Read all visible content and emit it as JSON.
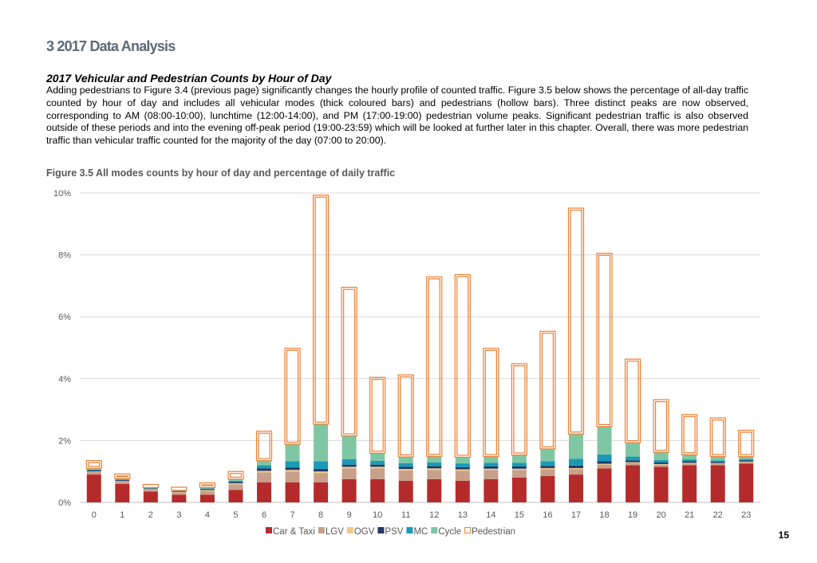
{
  "page": {
    "section_heading": "3 2017 Data Analysis",
    "sub_heading": "2017 Vehicular and Pedestrian Counts by Hour of Day",
    "paragraph": "Adding pedestrians to Figure 3.4 (previous page) significantly changes the hourly profile of counted traffic. Figure 3.5 below shows the percentage of all-day traffic counted by hour of day and includes all vehicular modes (thick coloured bars) and pedestrians (hollow bars). Three distinct peaks are now observed, corresponding to AM (08:00-10:00), lunchtime (12:00-14:00), and PM (17:00-19:00) pedestrian volume peaks. Significant pedestrian traffic is also observed outside of these periods and into the evening off-peak period (19:00-23:59) which will be looked at further later in this chapter. Overall, there was more pedestrian traffic than vehicular traffic counted for the majority of the day (07:00 to 20:00).",
    "figure_title": "Figure 3.5 All modes counts by hour of day and percentage of daily traffic",
    "page_number": "15"
  },
  "chart_data": {
    "type": "bar",
    "stacked": true,
    "categories": [
      "0",
      "1",
      "2",
      "3",
      "4",
      "5",
      "6",
      "7",
      "8",
      "9",
      "10",
      "11",
      "12",
      "13",
      "14",
      "15",
      "16",
      "17",
      "18",
      "19",
      "20",
      "21",
      "22",
      "23"
    ],
    "ylim": [
      0,
      10
    ],
    "yticks": [
      0,
      2,
      4,
      6,
      8,
      10
    ],
    "ytick_labels": [
      "0%",
      "2%",
      "4%",
      "6%",
      "8%",
      "10%"
    ],
    "grid": true,
    "legend_position": "bottom",
    "series": [
      {
        "name": "Car & Taxi",
        "color": "#b52b2b",
        "hollow": false,
        "values": [
          0.9,
          0.6,
          0.35,
          0.25,
          0.25,
          0.4,
          0.65,
          0.65,
          0.65,
          0.75,
          0.75,
          0.7,
          0.75,
          0.7,
          0.75,
          0.8,
          0.85,
          0.9,
          1.1,
          1.2,
          1.15,
          1.2,
          1.2,
          1.25
        ]
      },
      {
        "name": "LGV",
        "color": "#c8a08a",
        "hollow": false,
        "values": [
          0.08,
          0.07,
          0.06,
          0.07,
          0.12,
          0.18,
          0.32,
          0.35,
          0.3,
          0.35,
          0.35,
          0.33,
          0.3,
          0.32,
          0.3,
          0.25,
          0.22,
          0.18,
          0.12,
          0.08,
          0.07,
          0.06,
          0.05,
          0.05
        ]
      },
      {
        "name": "OGV",
        "color": "#f0c88a",
        "hollow": false,
        "values": [
          0.02,
          0.02,
          0.02,
          0.02,
          0.03,
          0.04,
          0.05,
          0.05,
          0.05,
          0.05,
          0.05,
          0.05,
          0.05,
          0.05,
          0.04,
          0.04,
          0.04,
          0.03,
          0.03,
          0.02,
          0.02,
          0.02,
          0.02,
          0.02
        ]
      },
      {
        "name": "PSV",
        "color": "#1f3864",
        "hollow": false,
        "values": [
          0.03,
          0.03,
          0.02,
          0.02,
          0.03,
          0.04,
          0.08,
          0.08,
          0.08,
          0.07,
          0.07,
          0.07,
          0.07,
          0.07,
          0.07,
          0.07,
          0.07,
          0.08,
          0.08,
          0.06,
          0.05,
          0.05,
          0.04,
          0.04
        ]
      },
      {
        "name": "MC",
        "color": "#1b99b5",
        "hollow": false,
        "values": [
          0.03,
          0.02,
          0.01,
          0.01,
          0.02,
          0.04,
          0.1,
          0.2,
          0.25,
          0.18,
          0.12,
          0.12,
          0.12,
          0.12,
          0.12,
          0.12,
          0.15,
          0.22,
          0.22,
          0.12,
          0.08,
          0.06,
          0.05,
          0.04
        ]
      },
      {
        "name": "Cycle",
        "color": "#7fc7a3",
        "hollow": false,
        "values": [
          0.04,
          0.03,
          0.02,
          0.02,
          0.03,
          0.05,
          0.15,
          0.55,
          1.2,
          0.75,
          0.25,
          0.2,
          0.2,
          0.2,
          0.2,
          0.25,
          0.4,
          0.8,
          0.9,
          0.45,
          0.25,
          0.15,
          0.12,
          0.08
        ]
      },
      {
        "name": "Pedestrian",
        "color": "#f4b183",
        "hollow": true,
        "values": [
          0.25,
          0.15,
          0.1,
          0.1,
          0.15,
          0.25,
          0.95,
          3.1,
          7.4,
          4.8,
          2.45,
          2.65,
          5.8,
          5.9,
          3.5,
          2.95,
          3.8,
          7.3,
          5.6,
          2.7,
          1.7,
          1.3,
          1.25,
          0.85
        ]
      }
    ]
  }
}
